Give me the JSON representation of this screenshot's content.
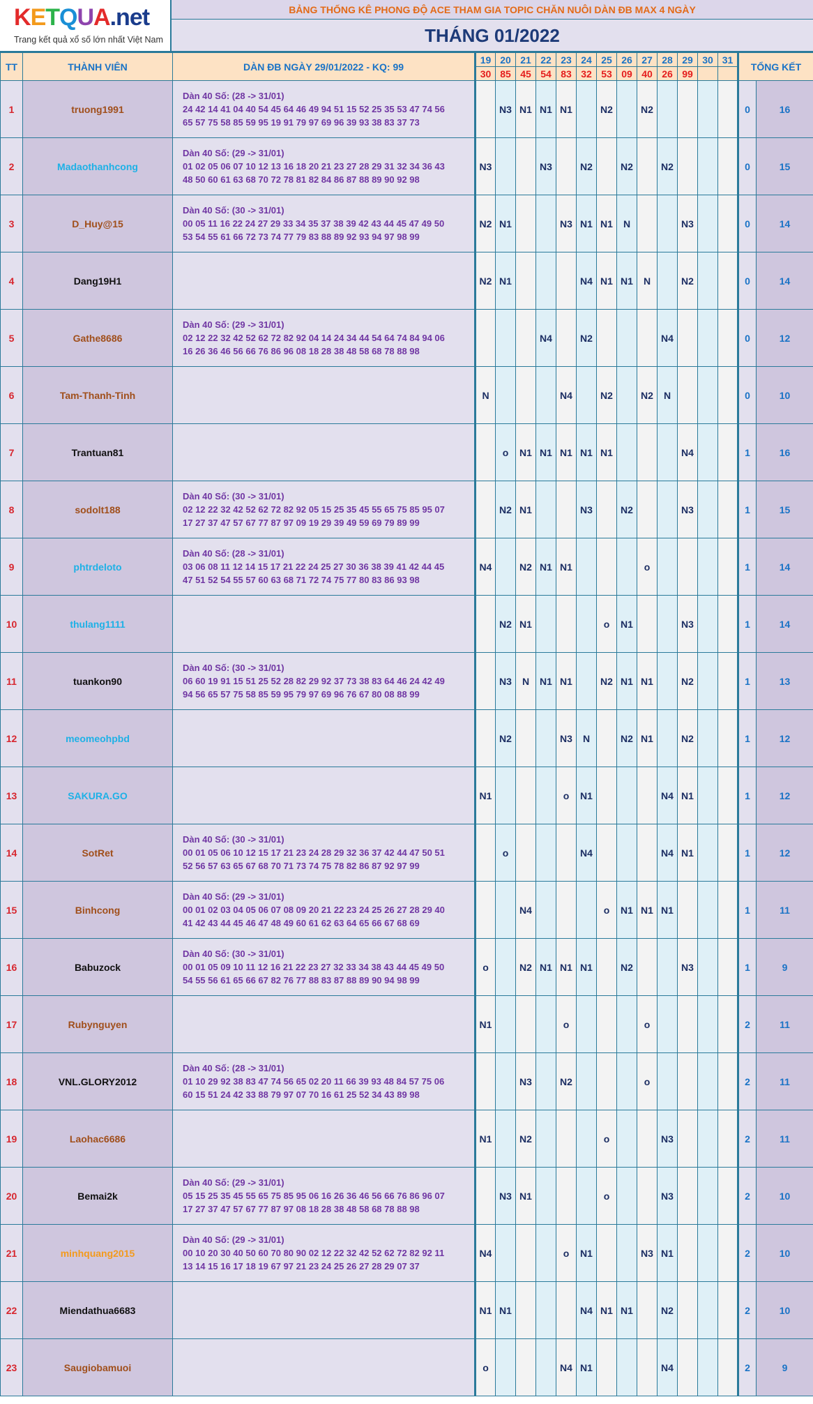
{
  "logo": {
    "word": "KETQUA",
    "suffix": ".net",
    "tagline": "Trang kết quả xổ số lớn nhất Việt Nam",
    "letter_colors": [
      "#e32b2b",
      "#f39a1c",
      "#2cb34a",
      "#1a8fd6",
      "#8e44ad",
      "#e32b2b"
    ]
  },
  "banner": "BẢNG THỐNG KÊ PHONG ĐỘ ACE THAM GIA TOPIC CHĂN NUÔI DÀN ĐB MAX 4 NGÀY",
  "month": "THÁNG 01/2022",
  "headers": {
    "tt": "TT",
    "member": "THÀNH VIÊN",
    "dan": "DÀN ĐB NGÀY 29/01/2022 - KQ: 99",
    "total": "TỔNG KẾT"
  },
  "days": [
    "19",
    "20",
    "21",
    "22",
    "23",
    "24",
    "25",
    "26",
    "27",
    "28",
    "29",
    "30",
    "31"
  ],
  "results": [
    "30",
    "85",
    "45",
    "54",
    "83",
    "32",
    "53",
    "09",
    "40",
    "26",
    "99",
    "",
    ""
  ],
  "rows": [
    {
      "tt": "1",
      "name": "truong1991",
      "color": "#a04f1b",
      "dan": [
        "Dàn 40 Số: (28 -> 31/01)",
        "24 42 14 41 04 40 54 45 64 46 49 94 51 15 52 25 35 53 47 74 56",
        "65 57 75 58 85 59 95 19 91 79 97 69 96 39 93 38 83 37 73"
      ],
      "cells": [
        "",
        "N3",
        "N1",
        "N1",
        "N1",
        "",
        "N2",
        "",
        "N2",
        "",
        "",
        "",
        ""
      ],
      "miss": "0",
      "total": "16"
    },
    {
      "tt": "2",
      "name": "Madaothanhcong",
      "color": "#1eb1e6",
      "dan": [
        "Dàn 40 Số: (29 -> 31/01)",
        "01 02 05 06 07 10 12 13 16 18 20 21 23 27 28 29 31 32 34 36 43",
        "48 50 60 61 63 68 70 72 78 81 82 84 86 87 88 89 90 92 98"
      ],
      "cells": [
        "N3",
        "",
        "",
        "N3",
        "",
        "N2",
        "",
        "N2",
        "",
        "N2",
        "",
        "",
        ""
      ],
      "miss": "0",
      "total": "15"
    },
    {
      "tt": "3",
      "name": "D_Huy@15",
      "color": "#a04f1b",
      "dan": [
        "Dàn 40 Số: (30 -> 31/01)",
        "00 05 11 16 22 24 27 29 33 34 35 37 38 39 42 43 44 45 47 49 50",
        "53 54 55 61 66 72 73 74 77 79 83 88 89 92 93 94 97 98 99"
      ],
      "cells": [
        "N2",
        "N1",
        "",
        "",
        "N3",
        "N1",
        "N1",
        "N",
        "",
        "",
        "N3",
        "",
        ""
      ],
      "miss": "0",
      "total": "14"
    },
    {
      "tt": "4",
      "name": "Dang19H1",
      "color": "#111111",
      "dan": [],
      "cells": [
        "N2",
        "N1",
        "",
        "",
        "",
        "N4",
        "N1",
        "N1",
        "N",
        "",
        "N2",
        "",
        ""
      ],
      "miss": "0",
      "total": "14"
    },
    {
      "tt": "5",
      "name": "Gathe8686",
      "color": "#a04f1b",
      "dan": [
        "Dàn 40 Số: (29 -> 31/01)",
        "02 12 22 32 42 52 62 72 82 92 04 14 24 34 44 54 64 74 84 94 06",
        "16 26 36 46 56 66 76 86 96 08 18 28 38 48 58 68 78 88 98"
      ],
      "cells": [
        "",
        "",
        "",
        "N4",
        "",
        "N2",
        "",
        "",
        "",
        "N4",
        "",
        "",
        ""
      ],
      "miss": "0",
      "total": "12"
    },
    {
      "tt": "6",
      "name": "Tam-Thanh-Tinh",
      "color": "#a04f1b",
      "dan": [],
      "cells": [
        "N",
        "",
        "",
        "",
        "N4",
        "",
        "N2",
        "",
        "N2",
        "N",
        "",
        "",
        ""
      ],
      "miss": "0",
      "total": "10"
    },
    {
      "tt": "7",
      "name": "Trantuan81",
      "color": "#111111",
      "dan": [],
      "cells": [
        "",
        "o",
        "N1",
        "N1",
        "N1",
        "N1",
        "N1",
        "",
        "",
        "",
        "N4",
        "",
        ""
      ],
      "miss": "1",
      "total": "16"
    },
    {
      "tt": "8",
      "name": "sodolt188",
      "color": "#a04f1b",
      "dan": [
        "Dàn 40 Số: (30 -> 31/01)",
        "02 12 22 32 42 52 62 72 82 92 05 15 25 35 45 55 65 75 85 95 07",
        "17 27 37 47 57 67 77 87 97 09 19 29 39 49 59 69 79 89 99"
      ],
      "cells": [
        "",
        "N2",
        "N1",
        "",
        "",
        "N3",
        "",
        "N2",
        "",
        "",
        "N3",
        "",
        ""
      ],
      "miss": "1",
      "total": "15"
    },
    {
      "tt": "9",
      "name": "phtrdeloto",
      "color": "#1eb1e6",
      "dan": [
        "Dàn 40 Số: (28 -> 31/01)",
        "03 06 08 11 12 14 15 17 21 22 24 25 27 30 36 38 39 41 42 44 45",
        "47 51 52 54 55 57 60 63 68 71 72 74 75 77 80 83 86 93 98"
      ],
      "cells": [
        "N4",
        "",
        "N2",
        "N1",
        "N1",
        "",
        "",
        "",
        "o",
        "",
        "",
        "",
        ""
      ],
      "miss": "1",
      "total": "14"
    },
    {
      "tt": "10",
      "name": "thulang1111",
      "color": "#1eb1e6",
      "dan": [],
      "cells": [
        "",
        "N2",
        "N1",
        "",
        "",
        "",
        "o",
        "N1",
        "",
        "",
        "N3",
        "",
        ""
      ],
      "miss": "1",
      "total": "14"
    },
    {
      "tt": "11",
      "name": "tuankon90",
      "color": "#111111",
      "dan": [
        "Dàn 40 Số: (30 -> 31/01)",
        "06 60 19 91 15 51 25 52 28 82 29 92 37 73 38 83 64 46 24 42 49",
        "94 56 65 57 75 58 85 59 95 79 97 69 96 76 67 80 08 88 99"
      ],
      "cells": [
        "",
        "N3",
        "N",
        "N1",
        "N1",
        "",
        "N2",
        "N1",
        "N1",
        "",
        "N2",
        "",
        ""
      ],
      "miss": "1",
      "total": "13"
    },
    {
      "tt": "12",
      "name": "meomeohpbd",
      "color": "#1eb1e6",
      "dan": [],
      "cells": [
        "",
        "N2",
        "",
        "",
        "N3",
        "N",
        "",
        "N2",
        "N1",
        "",
        "N2",
        "",
        ""
      ],
      "miss": "1",
      "total": "12"
    },
    {
      "tt": "13",
      "name": "SAKURA.GO",
      "color": "#1eb1e6",
      "dan": [],
      "cells": [
        "N1",
        "",
        "",
        "",
        "o",
        "N1",
        "",
        "",
        "",
        "N4",
        "N1",
        "",
        ""
      ],
      "miss": "1",
      "total": "12"
    },
    {
      "tt": "14",
      "name": "SotRet",
      "color": "#a04f1b",
      "dan": [
        "Dàn 40 Số: (30 -> 31/01)",
        "00 01 05 06 10 12 15 17 21 23 24 28 29 32 36 37 42 44 47 50 51",
        "52 56 57 63 65 67 68 70 71 73 74 75 78 82 86 87 92 97 99"
      ],
      "cells": [
        "",
        "o",
        "",
        "",
        "",
        "N4",
        "",
        "",
        "",
        "N4",
        "N1",
        "",
        ""
      ],
      "miss": "1",
      "total": "12"
    },
    {
      "tt": "15",
      "name": "Binhcong",
      "color": "#a04f1b",
      "dan": [
        "Dàn 40 Số: (29 -> 31/01)",
        "00 01 02 03 04 05 06 07 08 09 20 21 22 23 24 25 26 27 28 29 40",
        "41 42 43 44 45 46 47 48 49 60 61 62 63 64 65 66 67 68 69"
      ],
      "cells": [
        "",
        "",
        "N4",
        "",
        "",
        "",
        "o",
        "N1",
        "N1",
        "N1",
        "",
        "",
        ""
      ],
      "miss": "1",
      "total": "11"
    },
    {
      "tt": "16",
      "name": "Babuzock",
      "color": "#111111",
      "dan": [
        "Dàn 40 Số: (30 -> 31/01)",
        "00 01 05 09 10 11 12 16 21 22 23 27 32 33 34 38 43 44 45 49 50",
        "54 55 56 61 65 66 67 82 76 77 88 83 87 88 89 90 94 98 99"
      ],
      "cells": [
        "o",
        "",
        "N2",
        "N1",
        "N1",
        "N1",
        "",
        "N2",
        "",
        "",
        "N3",
        "",
        ""
      ],
      "miss": "1",
      "total": "9"
    },
    {
      "tt": "17",
      "name": "Rubynguyen",
      "color": "#a04f1b",
      "dan": [],
      "cells": [
        "N1",
        "",
        "",
        "",
        "o",
        "",
        "",
        "",
        "o",
        "",
        "",
        "",
        ""
      ],
      "miss": "2",
      "total": "11"
    },
    {
      "tt": "18",
      "name": "VNL.GLORY2012",
      "color": "#111111",
      "dan": [
        "Dàn 40 Số: (28 -> 31/01)",
        "01 10 29 92 38 83 47 74 56 65 02 20 11 66 39 93 48 84 57 75 06",
        "60 15 51 24 42 33 88 79 97 07 70 16 61 25 52 34 43 89 98"
      ],
      "cells": [
        "",
        "",
        "N3",
        "",
        "N2",
        "",
        "",
        "",
        "o",
        "",
        "",
        "",
        ""
      ],
      "miss": "2",
      "total": "11"
    },
    {
      "tt": "19",
      "name": "Laohac6686",
      "color": "#a04f1b",
      "dan": [],
      "cells": [
        "N1",
        "",
        "N2",
        "",
        "",
        "",
        "o",
        "",
        "",
        "N3",
        "",
        "",
        ""
      ],
      "miss": "2",
      "total": "11"
    },
    {
      "tt": "20",
      "name": "Bemai2k",
      "color": "#111111",
      "dan": [
        "Dàn 40 Số: (29 -> 31/01)",
        "05 15 25 35 45 55 65 75 85 95 06 16 26 36 46 56 66 76 86 96 07",
        "17 27 37 47 57 67 77 87 97 08 18 28 38 48 58 68 78 88 98"
      ],
      "cells": [
        "",
        "N3",
        "N1",
        "",
        "",
        "",
        "o",
        "",
        "",
        "N3",
        "",
        "",
        ""
      ],
      "miss": "2",
      "total": "10"
    },
    {
      "tt": "21",
      "name": "minhquang2015",
      "color": "#f39a1c",
      "dan": [
        "Dàn 40 Số: (29 -> 31/01)",
        "00 10 20 30 40 50 60 70 80 90 02 12 22 32 42 52 62 72 82 92 11",
        "13 14 15 16 17 18 19 67 97 21 23 24 25 26 27 28 29 07 37"
      ],
      "cells": [
        "N4",
        "",
        "",
        "",
        "o",
        "N1",
        "",
        "",
        "N3",
        "N1",
        "",
        "",
        ""
      ],
      "miss": "2",
      "total": "10"
    },
    {
      "tt": "22",
      "name": "Miendathua6683",
      "color": "#111111",
      "dan": [],
      "cells": [
        "N1",
        "N1",
        "",
        "",
        "",
        "N4",
        "N1",
        "N1",
        "",
        "N2",
        "",
        "",
        ""
      ],
      "miss": "2",
      "total": "10"
    },
    {
      "tt": "23",
      "name": "Saugiobamuoi",
      "color": "#a04f1b",
      "dan": [],
      "cells": [
        "o",
        "",
        "",
        "",
        "N4",
        "N1",
        "",
        "",
        "",
        "N4",
        "",
        "",
        ""
      ],
      "miss": "2",
      "total": "9"
    }
  ]
}
